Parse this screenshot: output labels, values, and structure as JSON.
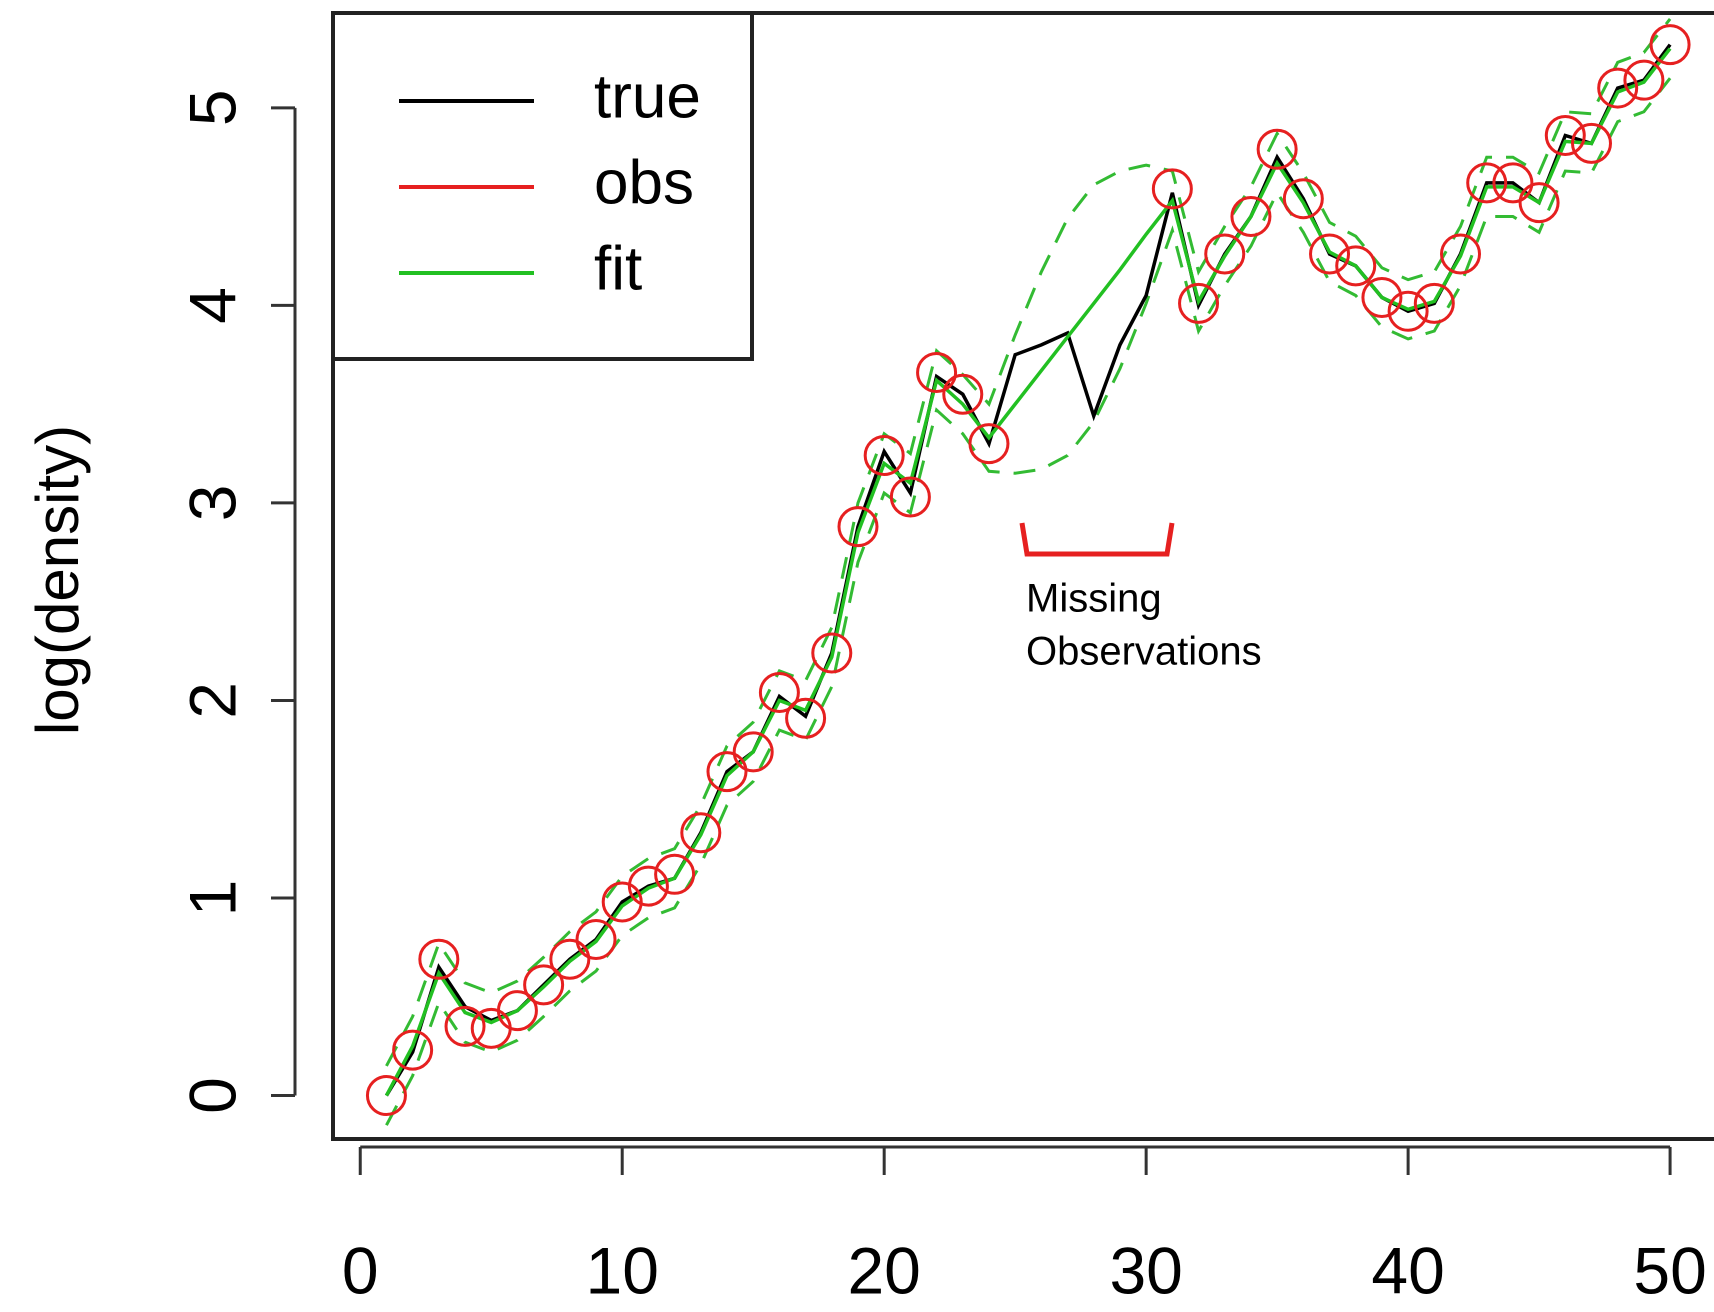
{
  "chart_data": {
    "type": "line",
    "y_label": "log(density)",
    "x": [
      1,
      2,
      3,
      4,
      5,
      6,
      7,
      8,
      9,
      10,
      11,
      12,
      13,
      14,
      15,
      16,
      17,
      18,
      19,
      20,
      21,
      22,
      23,
      24,
      25,
      26,
      27,
      28,
      29,
      30,
      31,
      32,
      33,
      34,
      35,
      36,
      37,
      38,
      39,
      40,
      41,
      42,
      43,
      44,
      45,
      46,
      47,
      48,
      49,
      50
    ],
    "series": [
      {
        "style": "dashed",
        "color": "#33bb33",
        "values": [
          0.15,
          0.4,
          0.77,
          0.57,
          0.52,
          0.58,
          0.7,
          0.83,
          0.93,
          1.11,
          1.2,
          1.25,
          1.47,
          1.77,
          1.89,
          2.15,
          2.1,
          2.37,
          3.0,
          3.35,
          3.25,
          3.77,
          3.65,
          3.5,
          3.85,
          4.17,
          4.44,
          4.61,
          4.68,
          4.71,
          4.68,
          4.17,
          4.4,
          4.6,
          4.87,
          4.67,
          4.42,
          4.35,
          4.19,
          4.13,
          4.17,
          4.4,
          4.75,
          4.75,
          4.67,
          4.98,
          4.97,
          5.23,
          5.28,
          5.45
        ]
      },
      {
        "style": "dashed",
        "color": "#33bb33",
        "values": [
          -0.15,
          0.1,
          0.47,
          0.27,
          0.22,
          0.28,
          0.4,
          0.53,
          0.63,
          0.81,
          0.9,
          0.95,
          1.17,
          1.47,
          1.59,
          1.85,
          1.8,
          2.07,
          2.7,
          3.05,
          2.95,
          3.47,
          3.35,
          3.16,
          3.15,
          3.17,
          3.24,
          3.41,
          3.68,
          4.01,
          4.38,
          3.87,
          4.1,
          4.3,
          4.57,
          4.37,
          4.12,
          4.05,
          3.89,
          3.83,
          3.87,
          4.1,
          4.45,
          4.45,
          4.37,
          4.68,
          4.67,
          4.93,
          4.98,
          5.15
        ]
      },
      {
        "name": "true",
        "style": "line",
        "color": "#000000",
        "values": [
          0,
          0.22,
          0.65,
          0.45,
          0.38,
          0.43,
          0.56,
          0.69,
          0.79,
          0.98,
          1.06,
          1.1,
          1.33,
          1.64,
          1.74,
          2.02,
          1.92,
          2.24,
          2.88,
          3.26,
          3.05,
          3.64,
          3.55,
          3.3,
          3.75,
          3.8,
          3.86,
          3.44,
          3.8,
          4.05,
          4.57,
          4.0,
          4.26,
          4.45,
          4.75,
          4.54,
          4.26,
          4.2,
          4.04,
          3.97,
          4.01,
          4.26,
          4.62,
          4.62,
          4.52,
          4.86,
          4.82,
          5.1,
          5.14,
          5.32
        ]
      },
      {
        "name": "fit",
        "style": "line",
        "color": "#22c022",
        "values": [
          0,
          0.25,
          0.62,
          0.42,
          0.37,
          0.43,
          0.55,
          0.68,
          0.78,
          0.96,
          1.05,
          1.1,
          1.32,
          1.62,
          1.74,
          2.0,
          1.95,
          2.22,
          2.85,
          3.2,
          3.1,
          3.62,
          3.5,
          3.33,
          3.5,
          3.67,
          3.84,
          4.01,
          4.18,
          4.36,
          4.53,
          4.02,
          4.25,
          4.45,
          4.72,
          4.52,
          4.27,
          4.2,
          4.04,
          3.98,
          4.02,
          4.25,
          4.6,
          4.6,
          4.52,
          4.83,
          4.82,
          5.08,
          5.13,
          5.3
        ]
      },
      {
        "name": "obs",
        "style": "points",
        "color": "#e62020",
        "values": [
          0,
          0.23,
          0.69,
          0.35,
          0.34,
          0.43,
          0.56,
          0.69,
          0.79,
          0.98,
          1.06,
          1.12,
          1.33,
          1.64,
          1.74,
          2.04,
          1.91,
          2.24,
          2.88,
          3.24,
          3.03,
          3.66,
          3.55,
          3.3,
          null,
          null,
          null,
          null,
          null,
          null,
          4.59,
          4.01,
          4.26,
          4.45,
          4.79,
          4.54,
          4.26,
          4.2,
          4.04,
          3.97,
          4.01,
          4.26,
          4.62,
          4.62,
          4.52,
          4.86,
          4.82,
          5.1,
          5.14,
          5.32
        ]
      }
    ],
    "legend_order": [
      "true",
      "obs",
      "fit"
    ],
    "legend": "top-left",
    "xlim": [
      -1.04,
      51.6
    ],
    "ylim": [
      -0.22,
      5.48
    ],
    "xticks": [
      0,
      10,
      20,
      30,
      40,
      50
    ],
    "yticks": [
      0,
      1,
      2,
      3,
      4,
      5
    ],
    "annotation": {
      "lines": [
        "Missing",
        "Observations"
      ],
      "color": "#000000"
    }
  }
}
